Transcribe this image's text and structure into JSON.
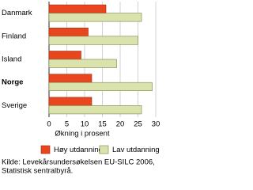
{
  "chart_data": {
    "type": "hbar",
    "categories": [
      "Danmark",
      "Finland",
      "Island",
      "Norge",
      "Sverige"
    ],
    "bold_categories": [
      "Norge"
    ],
    "series": [
      {
        "name": "Høy utdanning",
        "color": "#e8461e",
        "values": [
          16,
          11,
          9,
          12,
          12
        ]
      },
      {
        "name": "Lav utdanning",
        "color": "#dbe3ad",
        "values": [
          26,
          25,
          19,
          29,
          26
        ]
      }
    ],
    "xlabel": "Økning i prosent",
    "xlim": [
      0,
      30
    ],
    "xticks": [
      0,
      5,
      10,
      15,
      20,
      25,
      30
    ],
    "grid": true,
    "source": [
      "Kilde: Levekårsundersøkelsen EU-SILC 2006,",
      "Statistisk sentralbyrå."
    ]
  }
}
